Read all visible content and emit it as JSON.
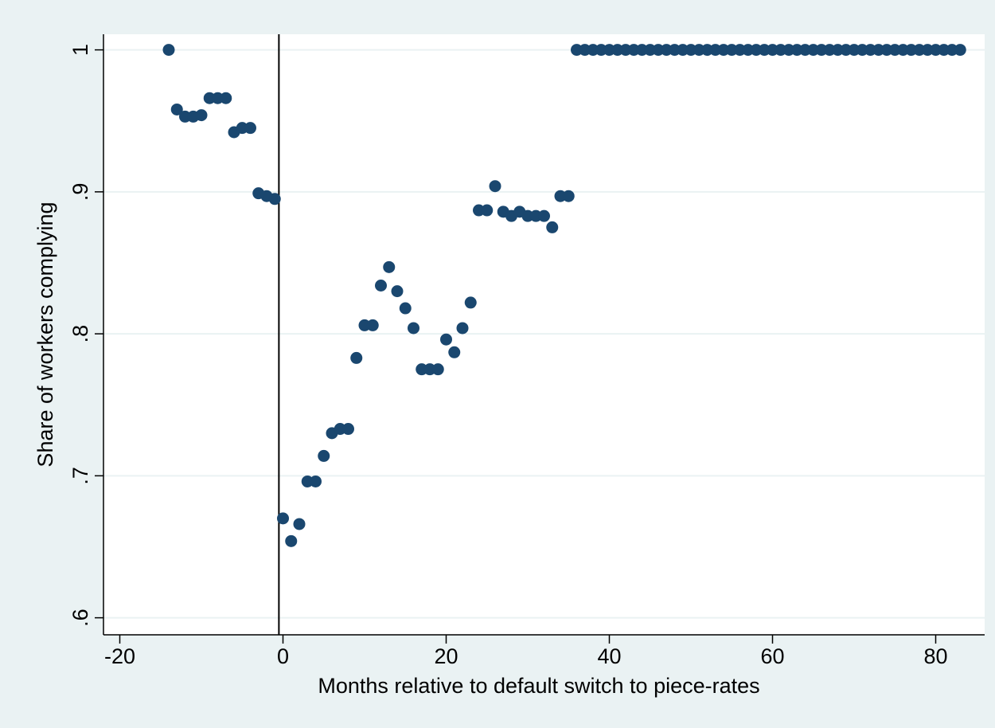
{
  "chart_data": {
    "type": "scatter",
    "x_label": "Months relative to default switch to piece-rates",
    "y_label": "Share of workers complying",
    "color": "#1a476f",
    "x": [
      -14,
      -13,
      -12,
      -11,
      -10,
      -9,
      -8,
      -7,
      -6,
      -5,
      -4,
      -3,
      -2,
      -1,
      0,
      1,
      2,
      3,
      4,
      5,
      6,
      7,
      8,
      9,
      10,
      11,
      12,
      13,
      14,
      15,
      16,
      17,
      18,
      19,
      20,
      21,
      22,
      23,
      24,
      25,
      26,
      27,
      28,
      29,
      30,
      31,
      32,
      33,
      34,
      35,
      36,
      37,
      38,
      39,
      40,
      41,
      42,
      43,
      44,
      45,
      46,
      47,
      48,
      49,
      50,
      51,
      52,
      53,
      54,
      55,
      56,
      57,
      58,
      59,
      60,
      61,
      62,
      63,
      64,
      65,
      66,
      67,
      68,
      69,
      70,
      71,
      72,
      73,
      74,
      75,
      76,
      77,
      78,
      79,
      80,
      81,
      82,
      83
    ],
    "values": [
      1.0,
      0.958,
      0.953,
      0.953,
      0.954,
      0.966,
      0.966,
      0.966,
      0.942,
      0.945,
      0.945,
      0.899,
      0.897,
      0.895,
      0.67,
      0.654,
      0.666,
      0.696,
      0.696,
      0.714,
      0.73,
      0.733,
      0.733,
      0.783,
      0.806,
      0.806,
      0.834,
      0.847,
      0.83,
      0.818,
      0.804,
      0.775,
      0.775,
      0.775,
      0.796,
      0.787,
      0.804,
      0.822,
      0.887,
      0.887,
      0.904,
      0.886,
      0.883,
      0.886,
      0.883,
      0.883,
      0.883,
      0.875,
      0.897,
      0.897,
      1.0,
      1.0,
      1.0,
      1.0,
      1.0,
      1.0,
      1.0,
      1.0,
      1.0,
      1.0,
      1.0,
      1.0,
      1.0,
      1.0,
      1.0,
      1.0,
      1.0,
      1.0,
      1.0,
      1.0,
      1.0,
      1.0,
      1.0,
      1.0,
      1.0,
      1.0,
      1.0,
      1.0,
      1.0,
      1.0,
      1.0,
      1.0,
      1.0,
      1.0,
      1.0,
      1.0,
      1.0,
      1.0,
      1.0,
      1.0,
      1.0,
      1.0,
      1.0,
      1.0,
      1.0,
      1.0,
      1.0,
      1.0
    ],
    "xlim": [
      -22,
      86
    ],
    "xticks": [
      -20,
      0,
      20,
      40,
      60,
      80
    ],
    "ylim": [
      0.588,
      1.011
    ],
    "yticks": [
      {
        "value": 0.6,
        "label": ".6"
      },
      {
        "value": 0.7,
        "label": ".7"
      },
      {
        "value": 0.8,
        "label": ".8"
      },
      {
        "value": 0.9,
        "label": ".9"
      },
      1
    ],
    "xline": -0.5,
    "grid": true
  }
}
